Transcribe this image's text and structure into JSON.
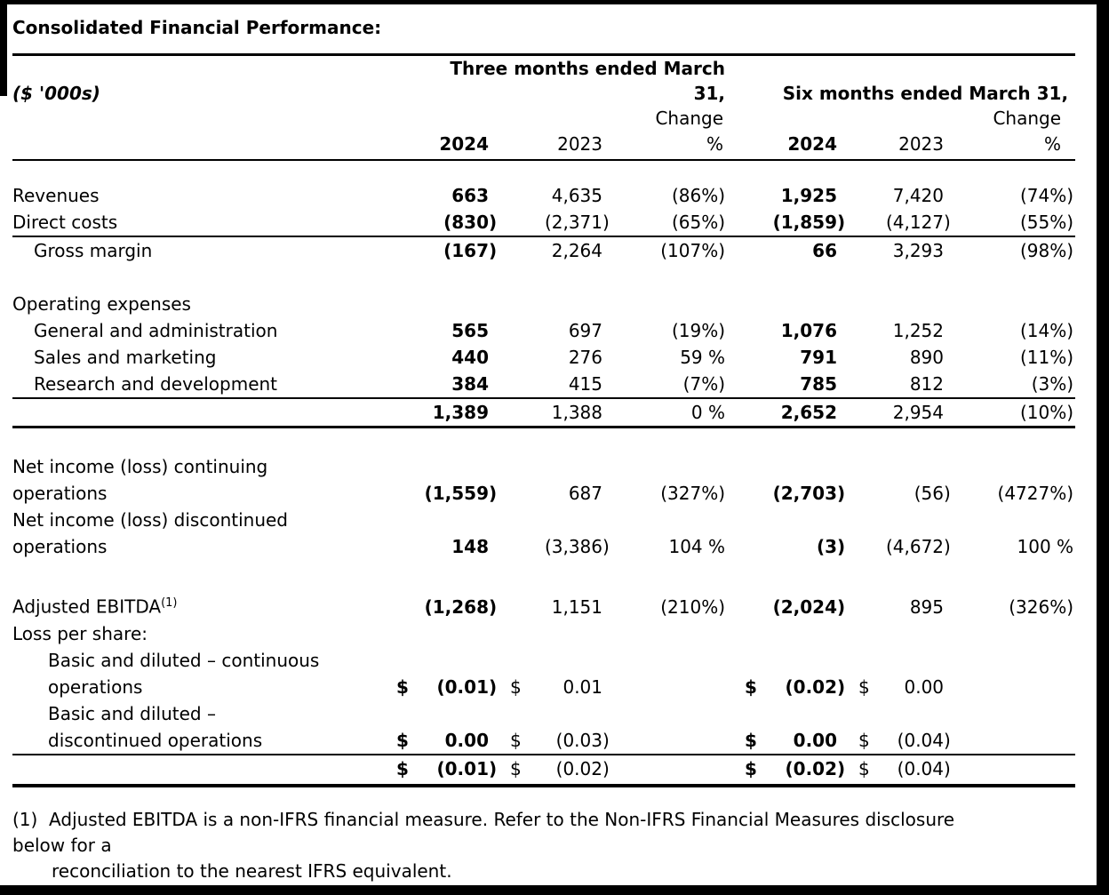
{
  "title": "Consolidated Financial Performance:",
  "unit_label": "($ '000s)",
  "header": {
    "group1_lines": [
      "Three months ended March",
      "31,"
    ],
    "group2": "Six months ended March 31,",
    "change_label": "Change",
    "percent_label": "%",
    "year_current": "2024",
    "year_prior": "2023"
  },
  "rows": [
    {
      "spacer": 24
    },
    {
      "label_lines": [
        "Revenues"
      ],
      "cells": [
        {
          "v": "663",
          "b": 1
        },
        {
          "v": "4,635"
        },
        {
          "v": "(86%)"
        },
        {
          "v": "1,925",
          "b": 1
        },
        {
          "v": "7,420"
        },
        {
          "v": "(74%)"
        }
      ]
    },
    {
      "label_lines": [
        "Direct costs"
      ],
      "border": "thin",
      "cells": [
        {
          "v": "(830)",
          "b": 1
        },
        {
          "v": "(2,371)"
        },
        {
          "v": "(65%)"
        },
        {
          "v": "(1,859)",
          "b": 1
        },
        {
          "v": "(4,127)"
        },
        {
          "v": "(55%)"
        }
      ]
    },
    {
      "label_lines": [
        "Gross margin"
      ],
      "indent": 1,
      "cells": [
        {
          "v": "(167)",
          "b": 1
        },
        {
          "v": "2,264"
        },
        {
          "v": "(107%)"
        },
        {
          "v": "66",
          "b": 1
        },
        {
          "v": "3,293"
        },
        {
          "v": "(98%)"
        }
      ]
    },
    {
      "spacer": 30
    },
    {
      "label_lines": [
        "Operating expenses"
      ],
      "cells": []
    },
    {
      "label_lines": [
        "General and administration"
      ],
      "indent": 1,
      "cells": [
        {
          "v": "565",
          "b": 1
        },
        {
          "v": "697"
        },
        {
          "v": "(19%)"
        },
        {
          "v": "1,076",
          "b": 1
        },
        {
          "v": "1,252"
        },
        {
          "v": "(14%)"
        }
      ]
    },
    {
      "label_lines": [
        "Sales and marketing"
      ],
      "indent": 1,
      "cells": [
        {
          "v": "440",
          "b": 1
        },
        {
          "v": "276"
        },
        {
          "v": "59 %"
        },
        {
          "v": "791",
          "b": 1
        },
        {
          "v": "890"
        },
        {
          "v": "(11%)"
        }
      ]
    },
    {
      "label_lines": [
        "Research and development"
      ],
      "indent": 1,
      "border": "thin",
      "cells": [
        {
          "v": "384",
          "b": 1
        },
        {
          "v": "415"
        },
        {
          "v": "(7%)"
        },
        {
          "v": "785",
          "b": 1
        },
        {
          "v": "812"
        },
        {
          "v": "(3%)"
        }
      ]
    },
    {
      "label_lines": [
        ""
      ],
      "border": "thick",
      "cells": [
        {
          "v": "1,389",
          "b": 1
        },
        {
          "v": "1,388"
        },
        {
          "v": "0 %"
        },
        {
          "v": "2,652",
          "b": 1
        },
        {
          "v": "2,954"
        },
        {
          "v": "(10%)"
        }
      ]
    },
    {
      "spacer": 28
    },
    {
      "label_lines": [
        "Net income (loss) continuing",
        "operations"
      ],
      "cells": [
        {
          "v": "(1,559)",
          "b": 1
        },
        {
          "v": "687"
        },
        {
          "v": "(327%)"
        },
        {
          "v": "(2,703)",
          "b": 1
        },
        {
          "v": "(56)"
        },
        {
          "v": "(4727%)"
        }
      ]
    },
    {
      "label_lines": [
        "Net income (loss) discontinued",
        "operations"
      ],
      "cells": [
        {
          "v": "148",
          "b": 1
        },
        {
          "v": "(3,386)"
        },
        {
          "v": "104 %"
        },
        {
          "v": "(3)",
          "b": 1
        },
        {
          "v": "(4,672)"
        },
        {
          "v": "100 %"
        }
      ]
    },
    {
      "spacer": 34
    },
    {
      "label_lines": [
        "Adjusted EBITDA"
      ],
      "sup": "(1)",
      "cells": [
        {
          "v": "(1,268)",
          "b": 1
        },
        {
          "v": "1,151"
        },
        {
          "v": "(210%)"
        },
        {
          "v": "(2,024)",
          "b": 1
        },
        {
          "v": "895"
        },
        {
          "v": "(326%)"
        }
      ]
    },
    {
      "label_lines": [
        "Loss per share:"
      ],
      "cells": []
    },
    {
      "label_lines": [
        "Basic and diluted – continuous",
        "operations"
      ],
      "indent": 2,
      "cells": [
        {
          "cur": "$",
          "v": "(0.01)",
          "b": 1
        },
        {
          "cur": "$",
          "v": "0.01"
        },
        null,
        {
          "cur": "$",
          "v": "(0.02)",
          "b": 1
        },
        {
          "cur": "$",
          "v": "0.00"
        },
        null
      ]
    },
    {
      "label_lines": [
        "Basic and diluted –",
        "discontinued operations"
      ],
      "indent": 2,
      "border": "thin",
      "cells": [
        {
          "cur": "$",
          "v": "0.00",
          "b": 1
        },
        {
          "cur": "$",
          "v": "(0.03)"
        },
        null,
        {
          "cur": "$",
          "v": "0.00",
          "b": 1
        },
        {
          "cur": "$",
          "v": "(0.04)"
        },
        null
      ]
    },
    {
      "label_lines": [
        ""
      ],
      "border": "xthick",
      "cells": [
        {
          "cur": "$",
          "v": "(0.01)",
          "b": 1
        },
        {
          "cur": "$",
          "v": "(0.02)"
        },
        null,
        {
          "cur": "$",
          "v": "(0.02)",
          "b": 1
        },
        {
          "cur": "$",
          "v": "(0.04)"
        },
        null
      ]
    }
  ],
  "footnote_lines": [
    "(1)  Adjusted EBITDA is a non-IFRS financial measure. Refer to the Non-IFRS Financial Measures disclosure",
    "below for a",
    "reconciliation to the nearest IFRS equivalent."
  ]
}
